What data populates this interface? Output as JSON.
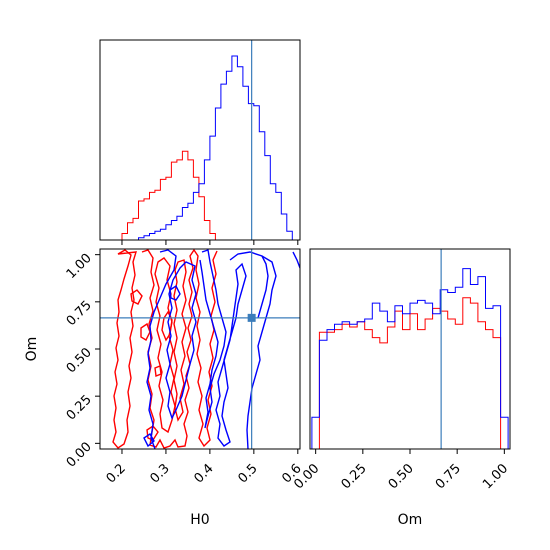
{
  "chart_data": {
    "type": "corner-plot",
    "parameters": [
      "H0",
      "Om"
    ],
    "truth": {
      "H0": 0.495,
      "Om": 0.665
    },
    "colors": {
      "run_a": "#0000ff",
      "run_b": "#ff0000",
      "truth": "#3b7dbb"
    },
    "xlabel_H0": "H0",
    "xlabel_Om": "Om",
    "ylabel_Om": "Om",
    "H0_ticks": [
      "0.2",
      "0.3",
      "0.4",
      "0.5",
      "0.6"
    ],
    "Om_ticks": [
      "0.00",
      "0.25",
      "0.50",
      "0.75",
      "1.00"
    ],
    "H0_range": [
      0.15,
      0.605
    ],
    "Om_range": [
      -0.03,
      1.03
    ],
    "hist_H0": {
      "edges": [
        0.2,
        0.2125,
        0.225,
        0.2375,
        0.25,
        0.2625,
        0.275,
        0.2875,
        0.3,
        0.3125,
        0.325,
        0.3375,
        0.35,
        0.3625,
        0.375,
        0.3875,
        0.4,
        0.4125,
        0.425,
        0.4375,
        0.45,
        0.4625,
        0.475,
        0.4875,
        0.5,
        0.5125,
        0.525,
        0.5375,
        0.55,
        0.5625,
        0.575,
        0.5875,
        0.6
      ],
      "series": [
        {
          "key": "run_b",
          "values": [
            3,
            8,
            10,
            18,
            19,
            22,
            23,
            28,
            29,
            36,
            37,
            41,
            37,
            29,
            20,
            9,
            3,
            0,
            0,
            0,
            0,
            0,
            0,
            0,
            0,
            0,
            0,
            0,
            0,
            0,
            0,
            0
          ]
        },
        {
          "key": "run_a",
          "values": [
            0,
            0,
            0,
            1,
            2,
            3,
            4,
            5,
            7,
            9,
            11,
            15,
            17,
            22,
            26,
            37,
            48,
            61,
            72,
            78,
            85,
            80,
            71,
            63,
            62,
            50,
            39,
            26,
            22,
            12,
            4,
            0
          ]
        }
      ]
    },
    "hist_Om": {
      "edges": [
        -0.02,
        0.02,
        0.06,
        0.1,
        0.14,
        0.18,
        0.22,
        0.26,
        0.3,
        0.34,
        0.38,
        0.42,
        0.46,
        0.5,
        0.54,
        0.58,
        0.62,
        0.66,
        0.7,
        0.74,
        0.78,
        0.82,
        0.86,
        0.9,
        0.94,
        0.98,
        1.02
      ],
      "series": [
        {
          "key": "run_a",
          "values": [
            12,
            41,
            45,
            47,
            48,
            47,
            48,
            49,
            55,
            52,
            48,
            54,
            51,
            55,
            56,
            55,
            51,
            60,
            59,
            61,
            68,
            62,
            65,
            53,
            54,
            12
          ]
        },
        {
          "key": "run_b",
          "values": [
            0,
            44,
            44,
            45,
            47,
            46,
            48,
            45,
            42,
            40,
            46,
            52,
            45,
            51,
            45,
            49,
            53,
            52,
            49,
            47,
            57,
            55,
            48,
            45,
            42,
            0
          ]
        }
      ]
    }
  }
}
